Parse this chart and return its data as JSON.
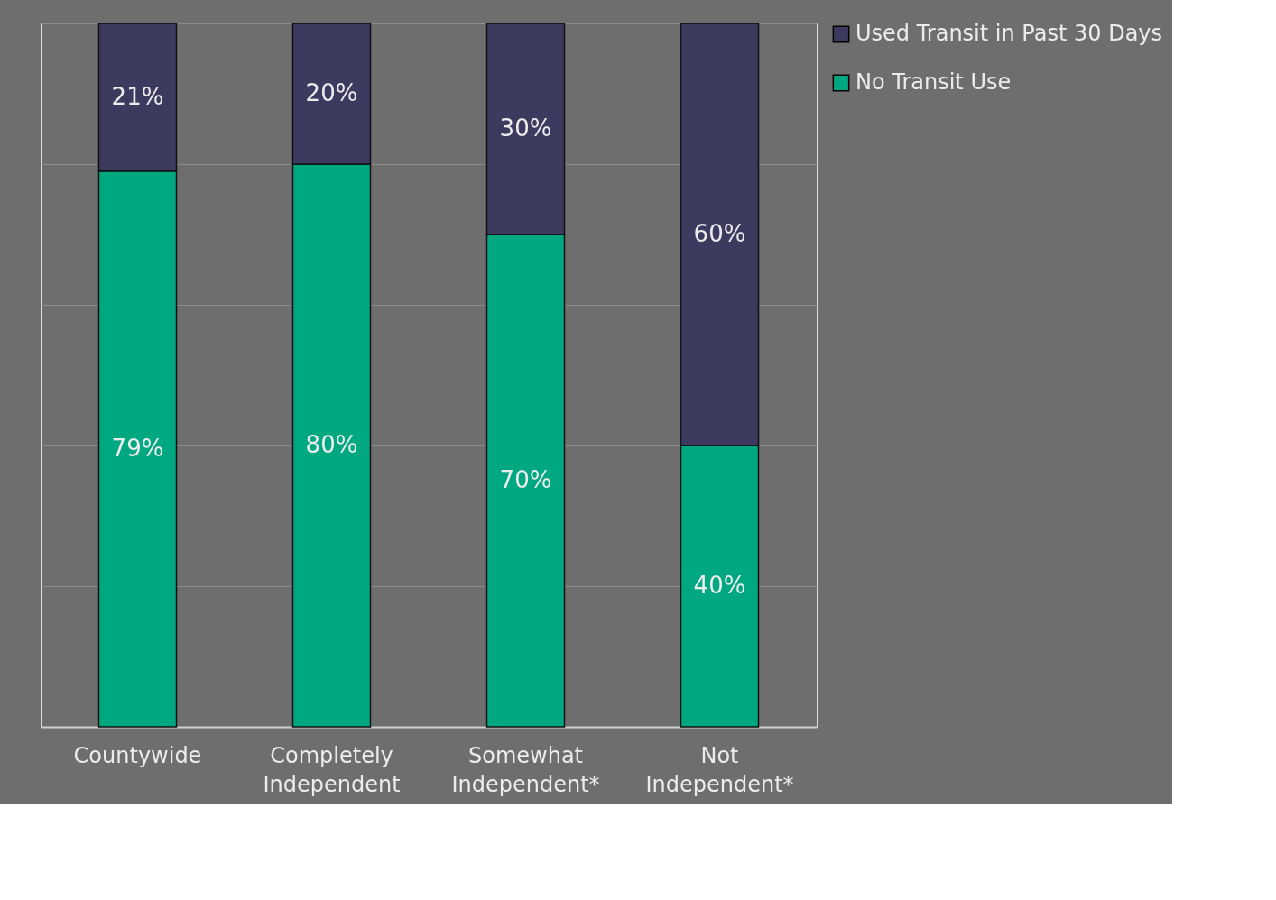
{
  "chart_data": {
    "type": "bar",
    "stacked": true,
    "categories": [
      "Countywide",
      "Completely Independent",
      "Somewhat Independent*",
      "Not Independent*"
    ],
    "series": [
      {
        "name": "No Transit Use",
        "color": "#00a882",
        "values": [
          79,
          80,
          70,
          40
        ],
        "value_labels": [
          "79%",
          "80%",
          "70%",
          "40%"
        ]
      },
      {
        "name": "Used Transit in Past 30 Days",
        "color": "#3d3a60",
        "values": [
          21,
          20,
          30,
          60
        ],
        "value_labels": [
          "21%",
          "20%",
          "30%",
          "60%"
        ]
      }
    ],
    "grid": "y",
    "tick_labels": "x",
    "legend": "right"
  }
}
